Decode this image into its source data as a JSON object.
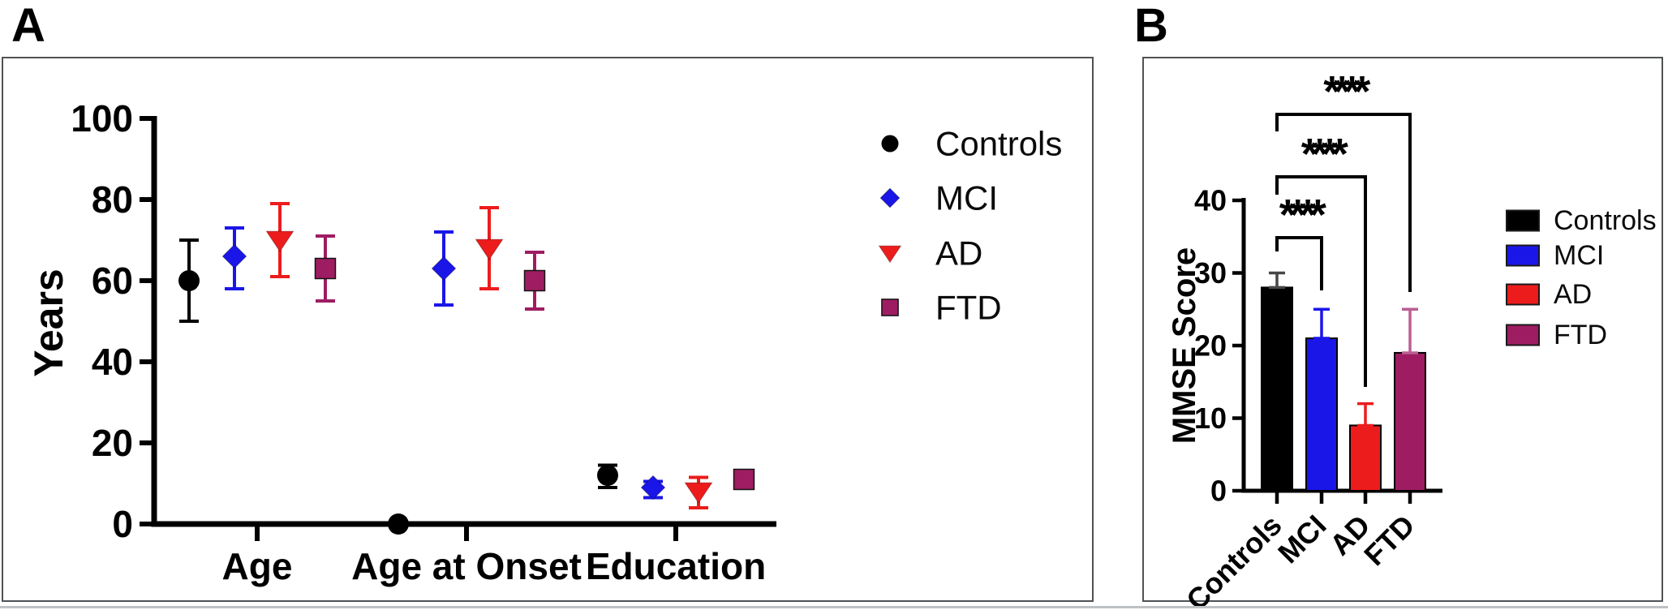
{
  "chart_data": [
    {
      "panel_label": "A",
      "type": "scatter",
      "title": "",
      "ylabel": "Years",
      "ylim": [
        0,
        100
      ],
      "yticks": [
        0,
        20,
        40,
        60,
        80,
        100
      ],
      "categories": [
        "Age",
        "Age at Onset",
        "Education"
      ],
      "groups": [
        "Controls",
        "MCI",
        "AD",
        "FTD"
      ],
      "colors": {
        "Controls": "#000000",
        "MCI": "#1A16E8",
        "AD": "#EC1C1C",
        "FTD": "#9E1D62"
      },
      "markers": {
        "Controls": "circle",
        "MCI": "diamond",
        "AD": "triangle-down",
        "FTD": "square"
      },
      "grid": false,
      "legend_position": "right",
      "series": [
        {
          "name": "Controls",
          "values": [
            {
              "category": "Age",
              "mean": 60,
              "lo": 50,
              "hi": 70
            },
            {
              "category": "Age at Onset",
              "mean": 0,
              "lo": 0,
              "hi": 0
            },
            {
              "category": "Education",
              "mean": 12,
              "lo": 9,
              "hi": 14.5
            }
          ]
        },
        {
          "name": "MCI",
          "values": [
            {
              "category": "Age",
              "mean": 66,
              "lo": 58,
              "hi": 73
            },
            {
              "category": "Age at Onset",
              "mean": 63,
              "lo": 54,
              "hi": 72
            },
            {
              "category": "Education",
              "mean": 9,
              "lo": 6.5,
              "hi": 10.5
            }
          ]
        },
        {
          "name": "AD",
          "values": [
            {
              "category": "Age",
              "mean": 70,
              "lo": 61,
              "hi": 79
            },
            {
              "category": "Age at Onset",
              "mean": 68,
              "lo": 58,
              "hi": 78
            },
            {
              "category": "Education",
              "mean": 8,
              "lo": 4,
              "hi": 11.5
            }
          ]
        },
        {
          "name": "FTD",
          "values": [
            {
              "category": "Age",
              "mean": 63,
              "lo": 55,
              "hi": 71
            },
            {
              "category": "Age at Onset",
              "mean": 60,
              "lo": 53,
              "hi": 67
            },
            {
              "category": "Education",
              "mean": 11,
              "lo": 11,
              "hi": 11
            }
          ]
        }
      ]
    },
    {
      "panel_label": "B",
      "type": "bar",
      "title": "",
      "ylabel": "MMSE Score",
      "ylim": [
        0,
        40
      ],
      "yticks": [
        0,
        10,
        20,
        30,
        40
      ],
      "categories": [
        "Controls",
        "MCI",
        "AD",
        "FTD"
      ],
      "values": [
        28,
        21,
        9,
        19
      ],
      "errors_hi": [
        30,
        25,
        12,
        25
      ],
      "colors": [
        "#000000",
        "#1A16E8",
        "#EC1C1C",
        "#9E1D62"
      ],
      "error_colors": [
        "#474747",
        "#1A16E8",
        "#EC1C1C",
        "#BA5E93"
      ],
      "grid": false,
      "legend_position": "right",
      "legend": [
        "Controls",
        "MCI",
        "AD",
        "FTD"
      ],
      "significance": [
        {
          "from": "Controls",
          "to": "MCI",
          "label": "****"
        },
        {
          "from": "Controls",
          "to": "AD",
          "label": "****"
        },
        {
          "from": "Controls",
          "to": "FTD",
          "label": "****"
        }
      ]
    }
  ]
}
